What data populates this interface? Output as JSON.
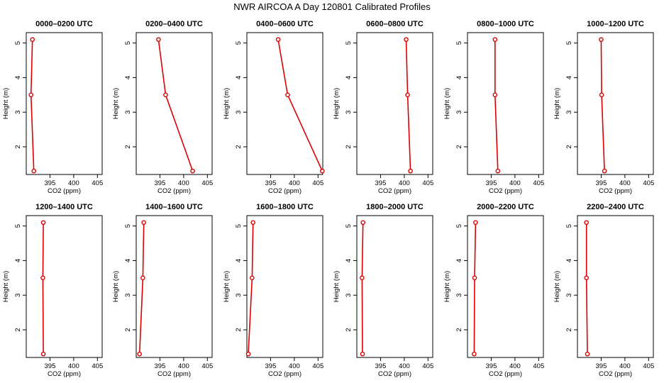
{
  "figure": {
    "title": "NWR AIRCOA A  Day 120801  Calibrated Profiles",
    "xlabel": "CO2 (ppm)",
    "ylabel": "Height (m)",
    "line_color": "#dd0000"
  },
  "chart_data": [
    {
      "type": "line",
      "title": "0000–0200 UTC",
      "xlabel": "CO2 (ppm)",
      "ylabel": "Height (m)",
      "xlim": [
        390,
        406
      ],
      "ylim": [
        1.2,
        5.3
      ],
      "xticks": [
        395,
        400,
        405
      ],
      "yticks": [
        2,
        3,
        4,
        5
      ],
      "x": [
        391.3,
        391.0,
        391.6
      ],
      "y": [
        5.1,
        3.5,
        1.3
      ]
    },
    {
      "type": "line",
      "title": "0200–0400 UTC",
      "xlabel": "CO2 (ppm)",
      "ylabel": "Height (m)",
      "xlim": [
        390,
        406
      ],
      "ylim": [
        1.2,
        5.3
      ],
      "xticks": [
        395,
        400,
        405
      ],
      "yticks": [
        2,
        3,
        4,
        5
      ],
      "x": [
        394.7,
        396.2,
        401.9
      ],
      "y": [
        5.1,
        3.5,
        1.3
      ]
    },
    {
      "type": "line",
      "title": "0400–0600 UTC",
      "xlabel": "CO2 (ppm)",
      "ylabel": "Height (m)",
      "xlim": [
        390,
        406
      ],
      "ylim": [
        1.2,
        5.3
      ],
      "xticks": [
        395,
        400,
        405
      ],
      "yticks": [
        2,
        3,
        4,
        5
      ],
      "x": [
        396.6,
        398.6,
        405.9
      ],
      "y": [
        5.1,
        3.5,
        1.3
      ]
    },
    {
      "type": "line",
      "title": "0600–0800 UTC",
      "xlabel": "CO2 (ppm)",
      "ylabel": "Height (m)",
      "xlim": [
        390,
        406
      ],
      "ylim": [
        1.2,
        5.3
      ],
      "xticks": [
        395,
        400,
        405
      ],
      "yticks": [
        2,
        3,
        4,
        5
      ],
      "x": [
        400.4,
        400.7,
        401.3
      ],
      "y": [
        5.1,
        3.5,
        1.3
      ]
    },
    {
      "type": "line",
      "title": "0800–1000 UTC",
      "xlabel": "CO2 (ppm)",
      "ylabel": "Height (m)",
      "xlim": [
        390,
        406
      ],
      "ylim": [
        1.2,
        5.3
      ],
      "xticks": [
        395,
        400,
        405
      ],
      "yticks": [
        2,
        3,
        4,
        5
      ],
      "x": [
        395.8,
        395.8,
        396.4
      ],
      "y": [
        5.1,
        3.5,
        1.3
      ]
    },
    {
      "type": "line",
      "title": "1000–1200 UTC",
      "xlabel": "CO2 (ppm)",
      "ylabel": "Height (m)",
      "xlim": [
        390,
        406
      ],
      "ylim": [
        1.2,
        5.3
      ],
      "xticks": [
        395,
        400,
        405
      ],
      "yticks": [
        2,
        3,
        4,
        5
      ],
      "x": [
        395.0,
        395.1,
        395.7
      ],
      "y": [
        5.1,
        3.5,
        1.3
      ]
    },
    {
      "type": "line",
      "title": "1200–1400 UTC",
      "xlabel": "CO2 (ppm)",
      "ylabel": "Height (m)",
      "xlim": [
        390,
        406
      ],
      "ylim": [
        1.2,
        5.3
      ],
      "xticks": [
        395,
        400,
        405
      ],
      "yticks": [
        2,
        3,
        4,
        5
      ],
      "x": [
        393.6,
        393.5,
        393.6
      ],
      "y": [
        5.1,
        3.5,
        1.3
      ]
    },
    {
      "type": "line",
      "title": "1400–1600 UTC",
      "xlabel": "CO2 (ppm)",
      "ylabel": "Height (m)",
      "xlim": [
        390,
        406
      ],
      "ylim": [
        1.2,
        5.3
      ],
      "xticks": [
        395,
        400,
        405
      ],
      "yticks": [
        2,
        3,
        4,
        5
      ],
      "x": [
        391.6,
        391.4,
        390.7
      ],
      "y": [
        5.1,
        3.5,
        1.3
      ]
    },
    {
      "type": "line",
      "title": "1600–1800 UTC",
      "xlabel": "CO2 (ppm)",
      "ylabel": "Height (m)",
      "xlim": [
        390,
        406
      ],
      "ylim": [
        1.2,
        5.3
      ],
      "xticks": [
        395,
        400,
        405
      ],
      "yticks": [
        2,
        3,
        4,
        5
      ],
      "x": [
        391.3,
        391.1,
        390.3
      ],
      "y": [
        5.1,
        3.5,
        1.3
      ]
    },
    {
      "type": "line",
      "title": "1800–2000 UTC",
      "xlabel": "CO2 (ppm)",
      "ylabel": "Height (m)",
      "xlim": [
        390,
        406
      ],
      "ylim": [
        1.2,
        5.3
      ],
      "xticks": [
        395,
        400,
        405
      ],
      "yticks": [
        2,
        3,
        4,
        5
      ],
      "x": [
        391.3,
        391.1,
        391.2
      ],
      "y": [
        5.1,
        3.5,
        1.3
      ]
    },
    {
      "type": "line",
      "title": "2000–2200 UTC",
      "xlabel": "CO2 (ppm)",
      "ylabel": "Height (m)",
      "xlim": [
        390,
        406
      ],
      "ylim": [
        1.2,
        5.3
      ],
      "xticks": [
        395,
        400,
        405
      ],
      "yticks": [
        2,
        3,
        4,
        5
      ],
      "x": [
        391.7,
        391.5,
        391.4
      ],
      "y": [
        5.1,
        3.5,
        1.3
      ]
    },
    {
      "type": "line",
      "title": "2200–2400 UTC",
      "xlabel": "CO2 (ppm)",
      "ylabel": "Height (m)",
      "xlim": [
        390,
        406
      ],
      "ylim": [
        1.2,
        5.3
      ],
      "xticks": [
        395,
        400,
        405
      ],
      "yticks": [
        2,
        3,
        4,
        5
      ],
      "x": [
        391.9,
        391.9,
        392.1
      ],
      "y": [
        5.1,
        3.5,
        1.3
      ]
    }
  ]
}
